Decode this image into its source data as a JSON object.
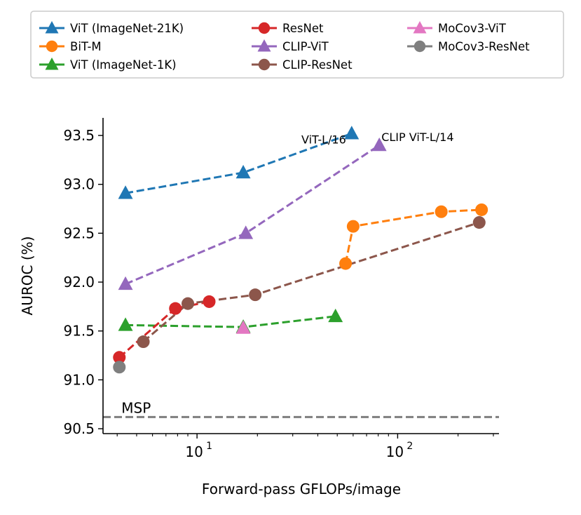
{
  "chart_data": {
    "type": "scatter",
    "xscale": "log",
    "xlabel": "Forward-pass GFLOPs/image",
    "ylabel": "AUROC (%)",
    "xlim": [
      3.4,
      320
    ],
    "ylim": [
      90.45,
      93.68
    ],
    "yticks": [
      90.5,
      91.0,
      91.5,
      92.0,
      92.5,
      93.0,
      93.5
    ],
    "ytick_labels": [
      "90.5",
      "91.0",
      "91.5",
      "92.0",
      "92.5",
      "93.0",
      "93.5"
    ],
    "xticks_major": [
      {
        "value": 10,
        "base": "10",
        "exp": "1"
      },
      {
        "value": 100,
        "base": "10",
        "exp": "2"
      }
    ],
    "xticks_minor": [
      4,
      5,
      6,
      7,
      8,
      9,
      20,
      30,
      40,
      50,
      60,
      70,
      80,
      90,
      200,
      300
    ],
    "legend_position": "top",
    "series": [
      {
        "name": "ViT (ImageNet-21K)",
        "color": "#1f77b4",
        "marker": "triangle",
        "x": [
          4.4,
          17.0,
          59.0
        ],
        "y": [
          92.91,
          93.12,
          93.52
        ]
      },
      {
        "name": "BiT-M",
        "color": "#ff7f0e",
        "marker": "circle",
        "x": [
          55.0,
          60.0,
          165.0,
          262.0
        ],
        "y": [
          92.19,
          92.57,
          92.72,
          92.74
        ]
      },
      {
        "name": "ViT (ImageNet-1K)",
        "color": "#2ca02c",
        "marker": "triangle",
        "x": [
          4.4,
          17.0,
          49.0
        ],
        "y": [
          91.56,
          91.54,
          91.65
        ]
      },
      {
        "name": "ResNet",
        "color": "#d62728",
        "marker": "circle",
        "x": [
          4.1,
          7.8,
          11.5
        ],
        "y": [
          91.23,
          91.73,
          91.8
        ]
      },
      {
        "name": "CLIP-ViT",
        "color": "#9467bd",
        "marker": "triangle",
        "x": [
          4.4,
          17.5,
          81.0
        ],
        "y": [
          91.98,
          92.5,
          93.4
        ]
      },
      {
        "name": "CLIP-ResNet",
        "color": "#8c564b",
        "marker": "circle",
        "x": [
          5.4,
          9.0,
          19.5,
          255.0
        ],
        "y": [
          91.39,
          91.78,
          91.87,
          92.61
        ]
      },
      {
        "name": "MoCov3-ViT",
        "color": "#e377c2",
        "marker": "triangle",
        "x": [
          17.0
        ],
        "y": [
          91.53
        ]
      },
      {
        "name": "MoCov3-ResNet",
        "color": "#7f7f7f",
        "marker": "circle",
        "x": [
          4.1
        ],
        "y": [
          91.13
        ]
      }
    ],
    "reference_line": {
      "label": "MSP",
      "y": 90.62,
      "color": "#7f7f7f"
    },
    "annotations": [
      {
        "text": "ViT-L/16",
        "x": 59.0,
        "y": 93.52
      },
      {
        "text": "CLIP ViT-L/14",
        "x": 81.0,
        "y": 93.4
      }
    ]
  }
}
